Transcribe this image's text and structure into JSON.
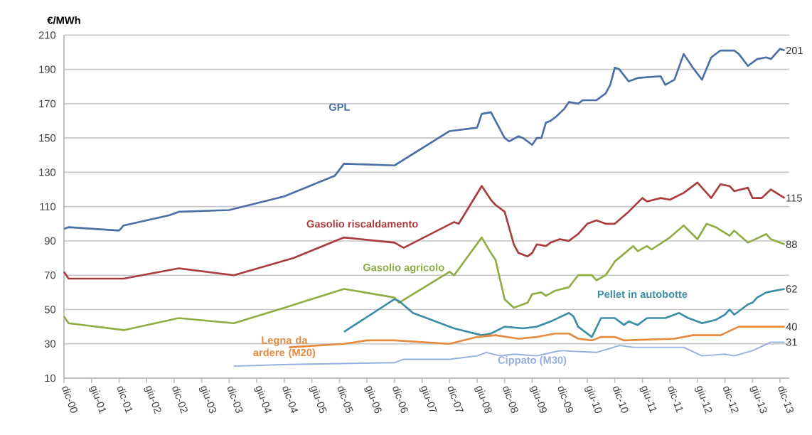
{
  "chart_data": {
    "type": "line",
    "ylabel": "€/MWh",
    "xlim": [
      "2000-12",
      "2014-02"
    ],
    "ylim": [
      10,
      210
    ],
    "yticks": [
      10,
      30,
      50,
      70,
      90,
      110,
      130,
      150,
      170,
      190,
      210
    ],
    "xticks": [
      {
        "value": "2000-12",
        "label": "dic-00"
      },
      {
        "value": "2001-06",
        "label": "giu-01"
      },
      {
        "value": "2001-12",
        "label": "dic-01"
      },
      {
        "value": "2002-06",
        "label": "giu-02"
      },
      {
        "value": "2002-12",
        "label": "dic-02"
      },
      {
        "value": "2003-06",
        "label": "giu-03"
      },
      {
        "value": "2003-12",
        "label": "dic-03"
      },
      {
        "value": "2004-06",
        "label": "giu-04"
      },
      {
        "value": "2004-12",
        "label": "dic-04"
      },
      {
        "value": "2005-06",
        "label": "giu-05"
      },
      {
        "value": "2005-12",
        "label": "dic-05"
      },
      {
        "value": "2006-06",
        "label": "giu-06"
      },
      {
        "value": "2006-12",
        "label": "dic-06"
      },
      {
        "value": "2007-06",
        "label": "giu-07"
      },
      {
        "value": "2007-12",
        "label": "dic-07"
      },
      {
        "value": "2008-06",
        "label": "giu-08"
      },
      {
        "value": "2008-12",
        "label": "dic-08"
      },
      {
        "value": "2009-06",
        "label": "giu-09"
      },
      {
        "value": "2009-12",
        "label": "dic-09"
      },
      {
        "value": "2010-06",
        "label": "giu-10"
      },
      {
        "value": "2010-12",
        "label": "dic-10"
      },
      {
        "value": "2011-06",
        "label": "giu-11"
      },
      {
        "value": "2011-12",
        "label": "dic-11"
      },
      {
        "value": "2012-06",
        "label": "giu-12"
      },
      {
        "value": "2012-12",
        "label": "dic-12"
      },
      {
        "value": "2013-06",
        "label": "giu-13"
      },
      {
        "value": "2013-12",
        "label": "dic-13"
      }
    ],
    "grid": "y",
    "marker": "none",
    "line_style": "solid",
    "series": [
      {
        "name": "GPL",
        "color": "#4a6fa5",
        "x": [
          "2000-12",
          "2001-01",
          "2001-12",
          "2002-01",
          "2002-11",
          "2003-01",
          "2003-12",
          "2004-12",
          "2005-11",
          "2006-01",
          "2006-12",
          "2007-12",
          "2008-06",
          "2008-07",
          "2008-09",
          "2008-12",
          "2009-01",
          "2009-03",
          "2009-04",
          "2009-06",
          "2009-07",
          "2009-08",
          "2009-09",
          "2009-10",
          "2009-11",
          "2010-01",
          "2010-02",
          "2010-04",
          "2010-05",
          "2010-08",
          "2010-10",
          "2010-11",
          "2010-12",
          "2011-01",
          "2011-03",
          "2011-05",
          "2011-10",
          "2011-11",
          "2012-01",
          "2012-03",
          "2012-05",
          "2012-07",
          "2012-09",
          "2012-11",
          "2013-02",
          "2013-03",
          "2013-05",
          "2013-07",
          "2013-09",
          "2013-10",
          "2013-12",
          "2014-01"
        ],
        "values": [
          97,
          98,
          96,
          99,
          105,
          107,
          108,
          116,
          128,
          135,
          134,
          154,
          156,
          164,
          165,
          150,
          148,
          151,
          150,
          146,
          150,
          150,
          159,
          160,
          162,
          167,
          171,
          170,
          172,
          172,
          176,
          181,
          191,
          190,
          183,
          185,
          186,
          181,
          184,
          199,
          191,
          184,
          197,
          201,
          201,
          199,
          192,
          196,
          197,
          196,
          202,
          201
        ]
      },
      {
        "name": "Gasolio riscaldamento",
        "color": "#a83c3e",
        "x": [
          "2000-12",
          "2001-01",
          "2002-01",
          "2003-01",
          "2004-01",
          "2005-02",
          "2006-01",
          "2006-12",
          "2007-02",
          "2008-01",
          "2008-02",
          "2008-07",
          "2008-09",
          "2008-10",
          "2008-12",
          "2009-02",
          "2009-03",
          "2009-05",
          "2009-06",
          "2009-07",
          "2009-09",
          "2009-10",
          "2009-12",
          "2010-02",
          "2010-04",
          "2010-06",
          "2010-08",
          "2010-10",
          "2010-12",
          "2011-03",
          "2011-06",
          "2011-07",
          "2011-10",
          "2011-12",
          "2012-03",
          "2012-06",
          "2012-09",
          "2012-11",
          "2013-01",
          "2013-02",
          "2013-05",
          "2013-06",
          "2013-08",
          "2013-10",
          "2014-01"
        ],
        "values": [
          72,
          68,
          68,
          74,
          70,
          80,
          92,
          89,
          86,
          101,
          100,
          122,
          114,
          111,
          107,
          88,
          83,
          81,
          83,
          88,
          87,
          89,
          91,
          90,
          94,
          100,
          102,
          100,
          100,
          107,
          115,
          113,
          115,
          114,
          118,
          124,
          115,
          123,
          122,
          119,
          121,
          115,
          115,
          120,
          115
        ]
      },
      {
        "name": "Gasolio agricolo",
        "color": "#8fac45",
        "x": [
          "2000-12",
          "2001-01",
          "2002-01",
          "2003-01",
          "2004-01",
          "2004-12",
          "2006-01",
          "2006-12",
          "2007-01",
          "2007-12",
          "2008-01",
          "2008-07",
          "2008-09",
          "2008-10",
          "2008-12",
          "2009-02",
          "2009-05",
          "2009-06",
          "2009-08",
          "2009-09",
          "2009-11",
          "2010-02",
          "2010-04",
          "2010-07",
          "2010-08",
          "2010-10",
          "2010-12",
          "2011-04",
          "2011-05",
          "2011-07",
          "2011-08",
          "2011-12",
          "2012-03",
          "2012-06",
          "2012-08",
          "2012-10",
          "2013-01",
          "2013-02",
          "2013-05",
          "2013-09",
          "2013-10",
          "2014-01"
        ],
        "values": [
          46,
          42,
          38,
          45,
          42,
          51,
          62,
          57,
          54,
          72,
          70,
          92,
          83,
          79,
          56,
          51,
          54,
          59,
          60,
          58,
          61,
          63,
          70,
          70,
          67,
          70,
          78,
          87,
          84,
          87,
          85,
          92,
          99,
          91,
          100,
          98,
          93,
          96,
          89,
          94,
          91,
          88
        ]
      },
      {
        "name": "Pellet in autobotte",
        "color": "#3c8ea6",
        "x": [
          "2006-01",
          "2006-12",
          "2007-01",
          "2007-04",
          "2007-07",
          "2008-01",
          "2008-07",
          "2008-09",
          "2008-12",
          "2009-04",
          "2009-07",
          "2009-10",
          "2010-02",
          "2010-03",
          "2010-04",
          "2010-07",
          "2010-09",
          "2010-12",
          "2011-02",
          "2011-03",
          "2011-05",
          "2011-07",
          "2011-11",
          "2012-02",
          "2012-04",
          "2012-06",
          "2012-07",
          "2012-10",
          "2012-12",
          "2013-01",
          "2013-02",
          "2013-05",
          "2013-06",
          "2013-07",
          "2013-09",
          "2013-11",
          "2014-01"
        ],
        "values": [
          37,
          56,
          55,
          48,
          45,
          39,
          35,
          36,
          40,
          39,
          40,
          43,
          48,
          46,
          40,
          34,
          45,
          45,
          41,
          43,
          41,
          45,
          45,
          48,
          45,
          43,
          42,
          44,
          47,
          50,
          47,
          53,
          54,
          57,
          60,
          61,
          62
        ]
      },
      {
        "name": "Legna da ardere (M20)",
        "color": "#e68a3e",
        "x": [
          "2005-01",
          "2006-01",
          "2006-06",
          "2006-12",
          "2007-12",
          "2008-06",
          "2008-10",
          "2009-03",
          "2009-07",
          "2009-11",
          "2010-02",
          "2010-04",
          "2010-07",
          "2010-09",
          "2010-12",
          "2011-02",
          "2012-01",
          "2012-05",
          "2012-11",
          "2013-03",
          "2014-01"
        ],
        "values": [
          28,
          30,
          32,
          32,
          30,
          34,
          35,
          33,
          34,
          36,
          36,
          33,
          32,
          34,
          34,
          32,
          33,
          35,
          35,
          40,
          40
        ]
      },
      {
        "name": "Cippato (M30)",
        "color": "#94aee0",
        "x": [
          "2004-01",
          "2005-01",
          "2006-12",
          "2007-02",
          "2007-12",
          "2008-06",
          "2008-08",
          "2008-11",
          "2009-02",
          "2009-07",
          "2009-12",
          "2010-08",
          "2011-01",
          "2011-04",
          "2011-10",
          "2012-03",
          "2012-07",
          "2012-12",
          "2013-02",
          "2013-06",
          "2013-10",
          "2014-01"
        ],
        "values": [
          17,
          18,
          19,
          21,
          21,
          23,
          25,
          23,
          24,
          23,
          26,
          25,
          29,
          28,
          28,
          28,
          23,
          24,
          23,
          26,
          31,
          31
        ]
      }
    ],
    "annotations": [
      {
        "text": "201",
        "x": "2014-01",
        "y": 201
      },
      {
        "text": "115",
        "x": "2014-01",
        "y": 115
      },
      {
        "text": "88",
        "x": "2014-01",
        "y": 88
      },
      {
        "text": "62",
        "x": "2014-01",
        "y": 62
      },
      {
        "text": "40",
        "x": "2014-01",
        "y": 40
      },
      {
        "text": "31",
        "x": "2014-01",
        "y": 31
      }
    ]
  }
}
